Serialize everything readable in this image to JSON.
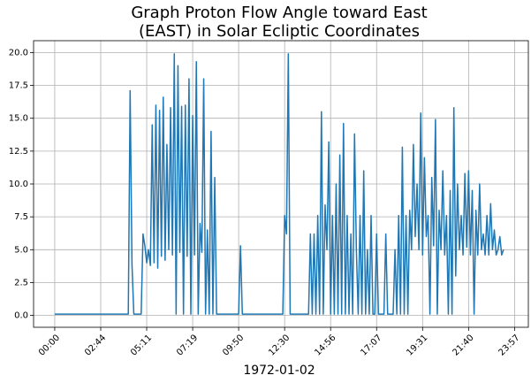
{
  "chart_data": {
    "type": "line",
    "title": [
      "Graph Proton Flow Angle toward East",
      "(EAST) in Solar Ecliptic Coordinates"
    ],
    "x_label": "1972-01-02",
    "color": "#1f77b4",
    "grid": true,
    "xlim": [
      -11.5,
      257.5
    ],
    "xticks": [
      {
        "value": 0,
        "label": "00:00"
      },
      {
        "value": 25,
        "label": "02:44"
      },
      {
        "value": 50,
        "label": "05:11"
      },
      {
        "value": 75,
        "label": "07:19"
      },
      {
        "value": 100,
        "label": "09:50"
      },
      {
        "value": 125,
        "label": "12:30"
      },
      {
        "value": 150,
        "label": "14:56"
      },
      {
        "value": 175,
        "label": "17:07"
      },
      {
        "value": 200,
        "label": "19:31"
      },
      {
        "value": 225,
        "label": "21:40"
      },
      {
        "value": 250,
        "label": "23:57"
      }
    ],
    "ylim": [
      -0.9,
      20.9
    ],
    "yticks": [
      {
        "value": 0,
        "label": "0.0"
      },
      2.5,
      {
        "value": 5,
        "label": "5.0"
      },
      7.5,
      {
        "value": 10,
        "label": "10.0"
      },
      12.5,
      {
        "value": 15,
        "label": "15.0"
      },
      17.5,
      {
        "value": 20,
        "label": "20.0"
      }
    ],
    "values": [
      0.1,
      0.1,
      0.1,
      0.1,
      0.1,
      0.1,
      0.1,
      0.1,
      0.1,
      0.1,
      0.1,
      0.1,
      0.1,
      0.1,
      0.1,
      0.1,
      0.1,
      0.1,
      0.1,
      0.1,
      0.1,
      0.1,
      0.1,
      0.1,
      0.1,
      0.1,
      0.1,
      0.1,
      0.1,
      0.1,
      0.1,
      0.1,
      0.1,
      0.1,
      0.1,
      0.1,
      0.1,
      0.1,
      0.1,
      0.1,
      0.1,
      17.1,
      3.9,
      0.1,
      0.1,
      0.1,
      0.1,
      0.1,
      6.2,
      5.3,
      4.0,
      5.0,
      3.8,
      14.5,
      4.0,
      16.0,
      3.6,
      15.6,
      4.5,
      16.6,
      4.2,
      13.0,
      5.0,
      15.8,
      4.6,
      19.9,
      0.1,
      19.0,
      4.8,
      15.9,
      0.1,
      16.0,
      4.5,
      18.0,
      0.1,
      15.2,
      4.6,
      19.3,
      0.1,
      7.0,
      4.8,
      18.0,
      0.1,
      6.5,
      0.1,
      14.0,
      0.1,
      10.5,
      0.1,
      0.1,
      0.1,
      0.1,
      0.1,
      0.1,
      0.1,
      0.1,
      0.1,
      0.1,
      0.1,
      0.1,
      0.1,
      5.3,
      0.1,
      0.1,
      0.1,
      0.1,
      0.1,
      0.1,
      0.1,
      0.1,
      0.1,
      0.1,
      0.1,
      0.1,
      0.1,
      0.1,
      0.1,
      0.1,
      0.1,
      0.1,
      0.1,
      0.1,
      0.1,
      0.1,
      0.1,
      7.6,
      6.2,
      19.9,
      0.1,
      0.1,
      0.1,
      0.1,
      0.1,
      0.1,
      0.1,
      0.1,
      0.1,
      0.1,
      0.1,
      6.2,
      0.1,
      6.2,
      0.1,
      7.6,
      0.1,
      15.5,
      0.1,
      8.4,
      5.0,
      13.2,
      0.1,
      7.6,
      0.1,
      10.0,
      0.1,
      12.2,
      0.1,
      14.6,
      0.1,
      7.6,
      0.1,
      6.2,
      0.1,
      13.8,
      5.0,
      0.1,
      7.6,
      0.1,
      11.0,
      0.1,
      5.0,
      0.1,
      7.6,
      0.1,
      0.1,
      6.2,
      0.1,
      0.1,
      0.1,
      0.1,
      6.2,
      0.1,
      0.1,
      0.1,
      0.1,
      5.0,
      0.1,
      7.6,
      0.1,
      12.8,
      0.1,
      7.6,
      0.1,
      8.0,
      5.0,
      13.0,
      6.0,
      10.0,
      5.0,
      15.4,
      4.6,
      12.0,
      6.0,
      7.6,
      0.1,
      10.5,
      5.3,
      14.9,
      0.1,
      8.0,
      5.0,
      11.0,
      4.6,
      7.6,
      0.1,
      9.5,
      0.1,
      15.8,
      3.0,
      10.0,
      5.0,
      7.6,
      4.6,
      10.8,
      5.2,
      11.0,
      4.6,
      9.5,
      0.1,
      8.0,
      4.6,
      10.0,
      5.0,
      6.2,
      4.6,
      7.6,
      4.6,
      8.5,
      5.0,
      6.5,
      4.6,
      5.0,
      6.0,
      4.6,
      5.0
    ]
  }
}
